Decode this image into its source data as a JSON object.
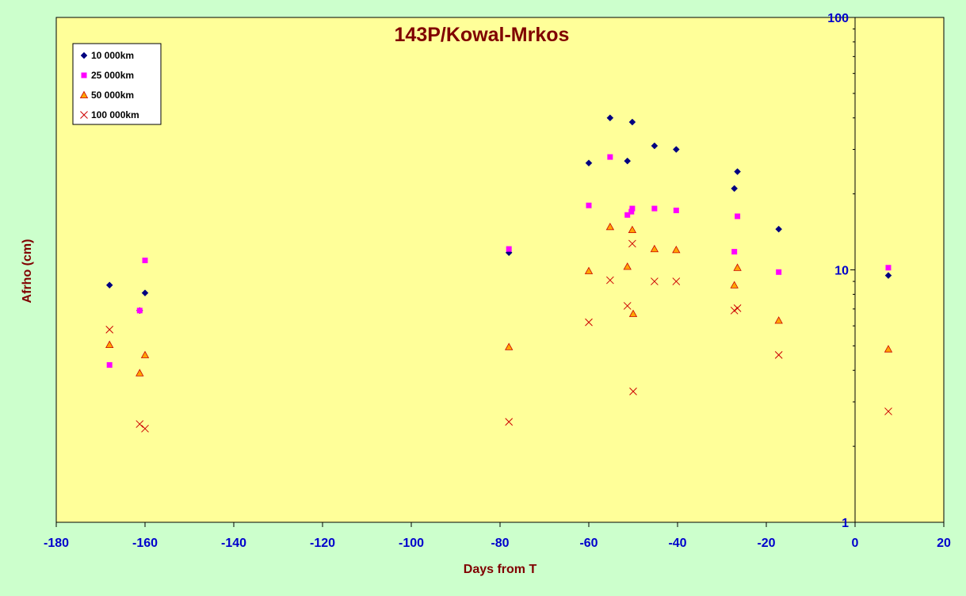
{
  "chart_data": {
    "type": "scatter",
    "title": "143P/Kowal-Mrkos",
    "xlabel": "Days from T",
    "ylabel": "Afrho (cm)",
    "xlim": [
      -180,
      20
    ],
    "ylim": [
      1,
      100
    ],
    "y_scale": "log",
    "x_ticks": [
      -180,
      -160,
      -140,
      -120,
      -100,
      -80,
      -60,
      -40,
      -20,
      0,
      20
    ],
    "y_ticks": [
      1,
      10,
      100
    ],
    "y_axis_side": "right",
    "legend_position": "top-left",
    "grid": false,
    "colors": {
      "figure_background": "#ccffcc",
      "plot_background": "#ffff99",
      "title": "#800000",
      "tick_labels": "#0000cc"
    },
    "series": [
      {
        "name": "10 000km",
        "marker": "diamond",
        "color": "#000080",
        "points": [
          [
            -168,
            8.7
          ],
          [
            -161.2,
            6.9
          ],
          [
            -160,
            8.1
          ],
          [
            -78,
            11.7
          ],
          [
            -60,
            26.5
          ],
          [
            -55.2,
            40
          ],
          [
            -51.3,
            27
          ],
          [
            -50.2,
            38.5
          ],
          [
            -45.2,
            31
          ],
          [
            -40.3,
            30
          ],
          [
            -27.2,
            21
          ],
          [
            -26.5,
            24.5
          ],
          [
            -17.2,
            14.5
          ],
          [
            7.5,
            9.5
          ]
        ]
      },
      {
        "name": "25 000km",
        "marker": "square",
        "color": "#ff00ff",
        "points": [
          [
            -168,
            4.2
          ],
          [
            -161.2,
            6.9
          ],
          [
            -160,
            10.9
          ],
          [
            -78,
            12.1
          ],
          [
            -60,
            18
          ],
          [
            -55.2,
            28
          ],
          [
            -51.3,
            16.5
          ],
          [
            -50.4,
            17
          ],
          [
            -50.2,
            17.5
          ],
          [
            -45.2,
            17.5
          ],
          [
            -40.3,
            17.2
          ],
          [
            -27.2,
            11.8
          ],
          [
            -26.5,
            16.3
          ],
          [
            -17.2,
            9.8
          ],
          [
            7.5,
            10.2
          ]
        ]
      },
      {
        "name": "50 000km",
        "marker": "triangle",
        "color": "#ffa500",
        "stroke": "#cc0000",
        "points": [
          [
            -168,
            5.05
          ],
          [
            -161.2,
            3.9
          ],
          [
            -160,
            4.6
          ],
          [
            -78,
            4.95
          ],
          [
            -60,
            9.9
          ],
          [
            -55.2,
            14.8
          ],
          [
            -51.3,
            10.3
          ],
          [
            -50.2,
            14.4
          ],
          [
            -50,
            6.7
          ],
          [
            -45.2,
            12.1
          ],
          [
            -40.3,
            12
          ],
          [
            -27.2,
            8.7
          ],
          [
            -26.5,
            10.2
          ],
          [
            -17.2,
            6.3
          ],
          [
            7.5,
            4.85
          ]
        ]
      },
      {
        "name": "100 000km",
        "marker": "x",
        "color": "#cc0000",
        "points": [
          [
            -168,
            5.8
          ],
          [
            -161.2,
            2.45
          ],
          [
            -160,
            2.35
          ],
          [
            -78,
            2.5
          ],
          [
            -60,
            6.2
          ],
          [
            -55.2,
            9.1
          ],
          [
            -51.3,
            7.2
          ],
          [
            -50.2,
            12.7
          ],
          [
            -50,
            3.3
          ],
          [
            -45.2,
            9
          ],
          [
            -40.3,
            9
          ],
          [
            -27.2,
            6.9
          ],
          [
            -26.5,
            7.05
          ],
          [
            -17.2,
            4.6
          ],
          [
            7.5,
            2.75
          ]
        ]
      }
    ]
  }
}
